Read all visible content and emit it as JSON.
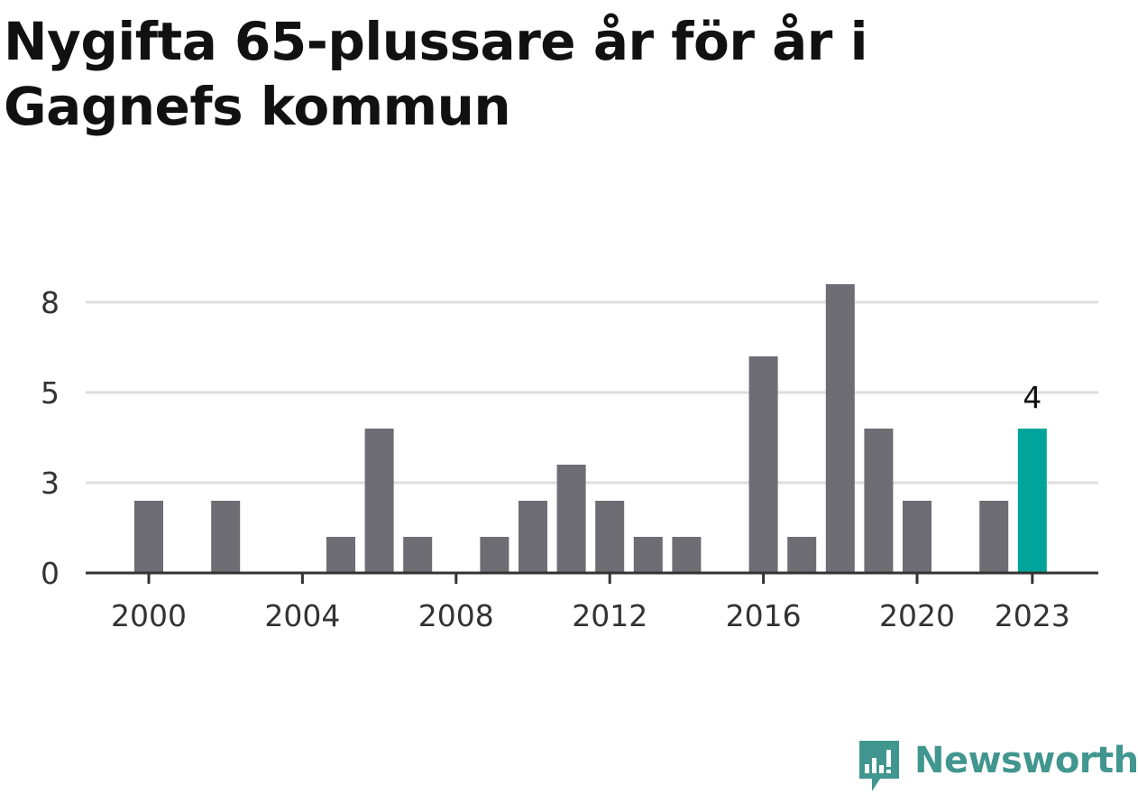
{
  "title": "Nygifta 65-plussare år för år i Gagnefs kommun",
  "brand": {
    "name": "Newsworthy",
    "color": "#41968f",
    "icon": "newsworthy-logo-icon"
  },
  "colors": {
    "bar": "#6e6d73",
    "highlight": "#00a49a",
    "grid": "#dddddd",
    "axis": "#333333"
  },
  "chart_data": {
    "type": "bar",
    "title": "Nygifta 65-plussare år för år i Gagnefs kommun",
    "xlabel": "",
    "ylabel": "",
    "categories": [
      "2000",
      "2001",
      "2002",
      "2003",
      "2004",
      "2005",
      "2006",
      "2007",
      "2008",
      "2009",
      "2010",
      "2011",
      "2012",
      "2013",
      "2014",
      "2015",
      "2016",
      "2017",
      "2018",
      "2019",
      "2020",
      "2021",
      "2022",
      "2023"
    ],
    "values": [
      2,
      0,
      2,
      0,
      0,
      1,
      4,
      1,
      0,
      1,
      2,
      3,
      2,
      1,
      1,
      0,
      6,
      1,
      8,
      4,
      2,
      0,
      2,
      4
    ],
    "highlight_category": "2023",
    "highlight_label": "4",
    "ylim": [
      0,
      7.5
    ],
    "yticks": [
      0,
      2.5,
      5,
      7.5
    ],
    "ytick_labels": [
      "0",
      "3",
      "5",
      "8"
    ],
    "xtick_labels": [
      "2000",
      "2004",
      "2008",
      "2012",
      "2016",
      "2020",
      "2023"
    ],
    "grid": true,
    "legend": "none"
  }
}
